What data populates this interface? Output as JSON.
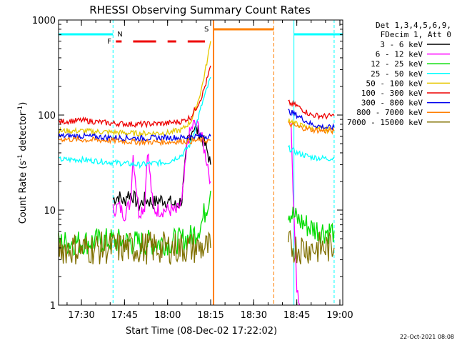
{
  "chart_data": {
    "type": "line",
    "title": "RHESSI Observing Summary Count Rates",
    "xlabel": "Start Time (08-Dec-02 17:22:02)",
    "ylabel": "Count Rate (s",
    "ylabel_sup1": "-1",
    "ylabel_mid": " detector",
    "ylabel_sup2": "-1",
    "ylabel_end": ")",
    "y_scale": "log",
    "ylim": [
      1,
      1000
    ],
    "xlim": [
      "17:22:02",
      "19:01"
    ],
    "x_ticks": [
      "17:30",
      "17:45",
      "18:00",
      "18:15",
      "18:30",
      "18:45",
      "19:00"
    ],
    "y_ticks": [
      "1",
      "10",
      "100",
      "1000"
    ],
    "grid": false,
    "legend_header": [
      "Det 1,3,4,5,6,9,",
      "FDecim 1, Att 0"
    ],
    "footer_date": "22-Oct-2021 08:08",
    "flag_labels": {
      "night": "N",
      "flare": "F",
      "saa": "S"
    },
    "data_gap": [
      "18:16",
      "18:42"
    ],
    "series": [
      {
        "name": "3 - 6 keV",
        "color": "#000000",
        "x": [
          "17:41",
          "17:43",
          "17:45",
          "17:46",
          "17:48",
          "17:50",
          "17:52",
          "17:55",
          "17:58",
          "18:01",
          "18:03",
          "18:05",
          "18:07",
          "18:09",
          "18:11",
          "18:12",
          "18:14",
          "18:15"
        ],
        "y": [
          13,
          14,
          12,
          15,
          14,
          11,
          13,
          12,
          13,
          12,
          11,
          13,
          55,
          75,
          65,
          58,
          40,
          30
        ]
      },
      {
        "name": "6 - 12 keV",
        "color": "#ff00ff",
        "x": [
          "17:41",
          "17:43",
          "17:45",
          "17:47",
          "17:48",
          "17:50",
          "17:52",
          "17:53",
          "17:55",
          "17:58",
          "18:01",
          "18:03",
          "18:05",
          "18:07",
          "18:09",
          "18:11",
          "18:12",
          "18:14",
          "18:15",
          "18:43",
          "18:44",
          "18:45",
          "18:46"
        ],
        "y": [
          10,
          11,
          9,
          12,
          38,
          9.5,
          11,
          45,
          10,
          10,
          10,
          9.5,
          12,
          55,
          80,
          75,
          55,
          30,
          20,
          70,
          10,
          1.5,
          1
        ]
      },
      {
        "name": "12 - 25 keV",
        "color": "#00dd00",
        "x": [
          "17:22",
          "17:30",
          "17:40",
          "17:50",
          "18:00",
          "18:05",
          "18:08",
          "18:10",
          "18:12",
          "18:15",
          "18:42",
          "18:45",
          "18:50",
          "18:55",
          "18:58"
        ],
        "y": [
          4.5,
          4.6,
          4.8,
          4.5,
          4.6,
          4.8,
          5.2,
          6.0,
          7.5,
          16,
          10,
          8,
          6.5,
          6,
          6
        ]
      },
      {
        "name": "25 - 50 keV",
        "color": "#00ffff",
        "x": [
          "17:22",
          "17:30",
          "17:40",
          "17:50",
          "18:00",
          "18:05",
          "18:08",
          "18:10",
          "18:12",
          "18:14",
          "18:15",
          "18:42",
          "18:45",
          "18:50",
          "18:55",
          "18:58"
        ],
        "y": [
          34,
          34,
          32,
          30,
          32,
          38,
          50,
          80,
          130,
          200,
          250,
          45,
          40,
          36,
          35,
          35
        ]
      },
      {
        "name": "50 - 100 keV",
        "color": "#e6c800",
        "x": [
          "17:22",
          "17:30",
          "17:40",
          "17:50",
          "18:00",
          "18:05",
          "18:08",
          "18:10",
          "18:12",
          "18:14",
          "18:15",
          "18:42",
          "18:45",
          "18:50",
          "18:55",
          "18:58"
        ],
        "y": [
          68,
          68,
          66,
          64,
          65,
          70,
          85,
          120,
          200,
          400,
          600,
          90,
          80,
          72,
          70,
          70
        ]
      },
      {
        "name": "100 - 300 keV",
        "color": "#ee0000",
        "x": [
          "17:22",
          "17:30",
          "17:40",
          "17:50",
          "18:00",
          "18:05",
          "18:08",
          "18:10",
          "18:12",
          "18:14",
          "18:15",
          "18:42",
          "18:45",
          "18:50",
          "18:55",
          "18:58"
        ],
        "y": [
          85,
          88,
          82,
          80,
          82,
          86,
          95,
          120,
          160,
          250,
          330,
          135,
          125,
          100,
          97,
          98
        ]
      },
      {
        "name": "300 - 800 keV",
        "color": "#0000ee",
        "x": [
          "17:22",
          "17:30",
          "17:40",
          "17:50",
          "18:00",
          "18:05",
          "18:08",
          "18:10",
          "18:12",
          "18:14",
          "18:15",
          "18:42",
          "18:45",
          "18:50",
          "18:55",
          "18:58"
        ],
        "y": [
          60,
          60,
          58,
          57,
          58,
          58,
          59,
          60,
          60,
          60,
          60,
          110,
          100,
          80,
          74,
          74
        ]
      },
      {
        "name": "800 - 7000 keV",
        "color": "#ff7f00",
        "x": [
          "17:22",
          "17:30",
          "17:40",
          "17:50",
          "18:00",
          "18:05",
          "18:08",
          "18:10",
          "18:12",
          "18:14",
          "18:15",
          "18:42",
          "18:45",
          "18:50",
          "18:55",
          "18:58"
        ],
        "y": [
          56,
          55,
          54,
          52,
          52,
          53,
          53,
          54,
          54,
          54,
          54,
          80,
          76,
          70,
          68,
          68
        ]
      },
      {
        "name": "7000 - 15000 keV",
        "color": "#807000",
        "x": [
          "17:22",
          "17:30",
          "17:40",
          "17:50",
          "18:00",
          "18:05",
          "18:08",
          "18:10",
          "18:12",
          "18:14",
          "18:15",
          "18:42",
          "18:45",
          "18:50",
          "18:55",
          "18:58"
        ],
        "y": [
          4.0,
          3.9,
          4.0,
          4.0,
          4.0,
          4.0,
          4.0,
          4.0,
          4.0,
          4.0,
          4.0,
          4.2,
          4.0,
          4.0,
          4.0,
          4.0
        ]
      }
    ]
  }
}
